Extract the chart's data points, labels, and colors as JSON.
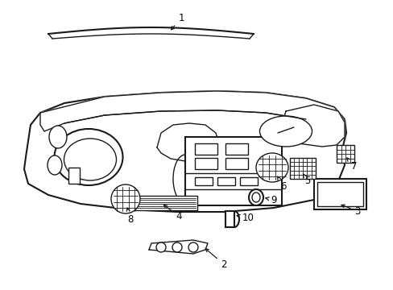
{
  "background_color": "#ffffff",
  "line_color": "#1a1a1a",
  "text_color": "#000000",
  "figure_width": 4.89,
  "figure_height": 3.6,
  "dpi": 100
}
